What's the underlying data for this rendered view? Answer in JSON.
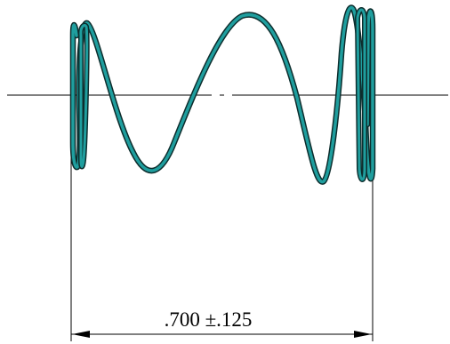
{
  "drawing": {
    "dimension_label": ".700 ±.125",
    "spring_color": "#1f9e9e",
    "spring_edge_color": "#0d2d2d",
    "line_color": "#000000"
  }
}
